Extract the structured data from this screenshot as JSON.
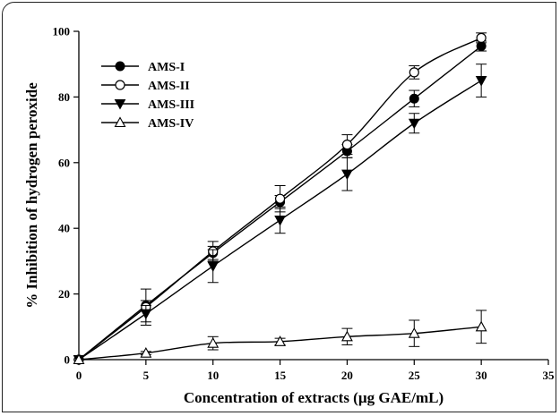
{
  "chart_data": {
    "type": "line",
    "title": "",
    "xlabel": "Concentration of extracts (µg GAE/mL)",
    "ylabel": "% Inhibition of hydrogen peroxide",
    "xlim": [
      0,
      35
    ],
    "ylim": [
      0,
      100
    ],
    "xticks": [
      0,
      5,
      10,
      15,
      20,
      25,
      30,
      35
    ],
    "yticks": [
      0,
      20,
      40,
      60,
      80,
      100
    ],
    "grid": false,
    "legend_position": "top-left",
    "x": [
      0,
      5,
      10,
      15,
      20,
      25,
      30
    ],
    "series": [
      {
        "name": "AMS-I",
        "marker": "filled-circle",
        "values": [
          0,
          16.5,
          32.5,
          48,
          63.5,
          79.5,
          95.5
        ],
        "errors": [
          0,
          1.5,
          2,
          2,
          2,
          2.5,
          1.5
        ]
      },
      {
        "name": "AMS-II",
        "marker": "open-circle",
        "values": [
          0,
          16,
          33,
          49,
          65.5,
          87.5,
          98
        ],
        "errors": [
          0,
          5.5,
          3,
          4,
          3,
          2,
          1.5
        ]
      },
      {
        "name": "AMS-III",
        "marker": "filled-triangle-down",
        "values": [
          0,
          14,
          28.5,
          42.5,
          56.5,
          72,
          85
        ],
        "errors": [
          0,
          2.5,
          5,
          4,
          5,
          3,
          5
        ]
      },
      {
        "name": "AMS-IV",
        "marker": "open-triangle-up",
        "values": [
          0,
          2,
          5,
          5.5,
          7,
          8,
          10
        ],
        "errors": [
          0,
          0.5,
          2,
          1,
          2.5,
          4,
          5
        ]
      }
    ]
  }
}
